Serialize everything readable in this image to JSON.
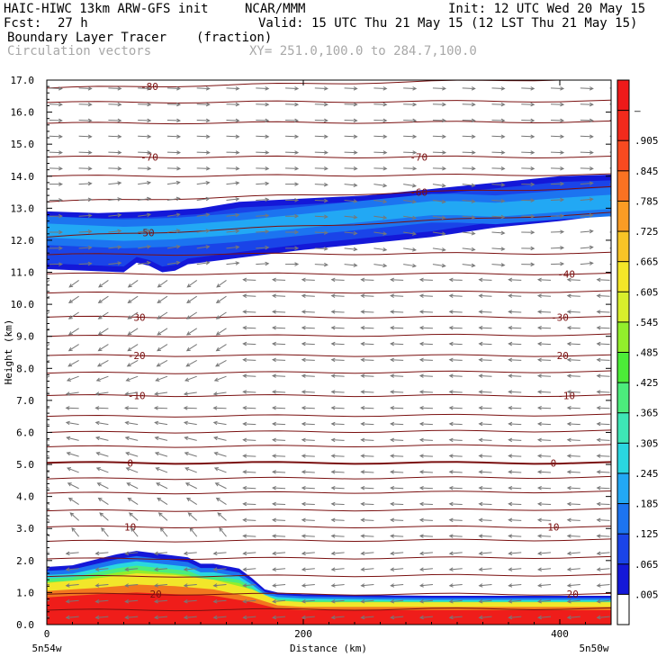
{
  "header": {
    "model": "HAIC-HIWC 13km ARW-GFS init",
    "org": "NCAR/MMM",
    "init": "Init: 12 UTC Wed 20 May 15",
    "fcst_label": "Fcst:",
    "fcst_value": "27 h",
    "valid": "Valid: 15 UTC Thu 21 May 15 (12 LST Thu 21 May 15)",
    "field": "Boundary Layer Tracer",
    "field_units": "(fraction)",
    "overlay": "Circulation vectors",
    "xsec": "XY= 251.0,100.0 to 284.7,100.0"
  },
  "colors": {
    "isotherm": "#7a1010",
    "vector": "#777777",
    "frame": "#000000"
  },
  "chart_data": {
    "type": "heatmap",
    "xlabel": "Distance (km)",
    "ylabel": "Height (km)",
    "xlim": [
      0,
      440
    ],
    "ylim": [
      0,
      17
    ],
    "x_ticks": [
      "0",
      "200",
      "400"
    ],
    "x_tick_values": [
      0,
      200,
      400
    ],
    "x_endpoints": [
      "5n54w",
      "5n50w"
    ],
    "y_ticks": [
      "0.0",
      "1.0",
      "2.0",
      "3.0",
      "4.0",
      "5.0",
      "6.0",
      "7.0",
      "8.0",
      "9.0",
      "10.0",
      "11.0",
      "12.0",
      "13.0",
      "14.0",
      "15.0",
      "16.0",
      "17.0"
    ],
    "colorbar": {
      "labels": [
        ".005",
        ".065",
        ".125",
        ".185",
        ".245",
        ".305",
        ".365",
        ".425",
        ".485",
        ".545",
        ".605",
        ".665",
        ".725",
        ".785",
        ".845",
        ".905",
        "–"
      ],
      "colors": [
        "#ffffff",
        "#1418d8",
        "#1a44e8",
        "#1c74f0",
        "#22a8f4",
        "#2ad6e0",
        "#3ee6b6",
        "#4cec7c",
        "#4cec38",
        "#92ee2c",
        "#d8ee2c",
        "#f4e628",
        "#f8c426",
        "#fa9c24",
        "#fa7222",
        "#f84a20",
        "#f22a1c",
        "#ee1a1a"
      ]
    },
    "layers": [
      {
        "name": "boundary-layer-mid",
        "color": "#f2e62a",
        "x": [
          0,
          40,
          70,
          100,
          130,
          160,
          180,
          200,
          440
        ],
        "y": [
          1.3,
          1.45,
          1.6,
          1.55,
          1.4,
          1.1,
          0.75,
          0.7,
          0.7
        ]
      },
      {
        "name": "boundary-layer-inner",
        "color": "#f2771f",
        "x": [
          0,
          40,
          70,
          100,
          130,
          160,
          180,
          200,
          440
        ],
        "y": [
          1.05,
          1.15,
          1.25,
          1.2,
          1.1,
          0.85,
          0.6,
          0.55,
          0.55
        ]
      },
      {
        "name": "boundary-layer-core",
        "color": "#ef1d1a",
        "x": [
          0,
          40,
          70,
          100,
          130,
          160,
          180,
          200,
          440
        ],
        "y": [
          0.85,
          0.95,
          1.0,
          0.95,
          0.9,
          0.7,
          0.5,
          0.45,
          0.45
        ]
      }
    ],
    "boundary_layer_top": {
      "x": [
        0,
        20,
        40,
        55,
        70,
        90,
        110,
        120,
        130,
        150,
        160,
        170,
        180,
        200,
        250,
        300,
        350,
        400,
        440
      ],
      "y": [
        1.8,
        1.85,
        2.05,
        2.2,
        2.3,
        2.2,
        2.1,
        1.9,
        1.9,
        1.75,
        1.45,
        1.1,
        1.0,
        0.95,
        0.92,
        0.9,
        0.9,
        0.9,
        0.9
      ]
    },
    "cloud_band": {
      "top_x": [
        0,
        40,
        80,
        120,
        150,
        200,
        250,
        300,
        350,
        400,
        440
      ],
      "top_y": [
        12.9,
        12.85,
        12.9,
        13.0,
        13.2,
        13.3,
        13.4,
        13.6,
        13.8,
        14.0,
        14.05
      ],
      "bottom_x": [
        0,
        30,
        60,
        70,
        80,
        90,
        100,
        110,
        120,
        150,
        200,
        250,
        300,
        350,
        400,
        440
      ],
      "bottom_y": [
        11.1,
        11.05,
        11.0,
        11.3,
        11.2,
        11.0,
        11.05,
        11.25,
        11.3,
        11.45,
        11.7,
        11.9,
        12.1,
        12.4,
        12.6,
        12.8
      ],
      "core_x": [
        0,
        60,
        100,
        150,
        200,
        250,
        300,
        320,
        350,
        400,
        440
      ],
      "core_y": [
        12.3,
        12.2,
        12.25,
        12.4,
        12.6,
        12.8,
        13.0,
        13.0,
        12.95,
        13.1,
        13.2
      ]
    },
    "isotherms": [
      {
        "label": "-80",
        "y0": 16.75,
        "y1": 17.05,
        "label_x": [
          80
        ]
      },
      {
        "label": "-70",
        "y0": 14.6,
        "y1": 14.6,
        "label_x": [
          80,
          290
        ]
      },
      {
        "label": "-60",
        "y0": 13.2,
        "y1": 13.65,
        "label_x": [
          290
        ]
      },
      {
        "label": "-50",
        "y0": 12.1,
        "y1": 12.85,
        "label_x": [
          77
        ]
      },
      {
        "label": "-40",
        "y0": 10.95,
        "y1": 10.95,
        "label_x": [
          405
        ]
      },
      {
        "label": "-30",
        "y0": 9.6,
        "y1": 9.6,
        "label_x": [
          70,
          400
        ]
      },
      {
        "label": "-20",
        "y0": 8.4,
        "y1": 8.4,
        "label_x": [
          70,
          400
        ]
      },
      {
        "label": "-10",
        "y0": 7.15,
        "y1": 7.15,
        "label_x": [
          70,
          405
        ]
      },
      {
        "label": "0",
        "y0": 5.05,
        "y1": 5.05,
        "label_x": [
          65,
          395
        ]
      },
      {
        "label": "10",
        "y0": 3.05,
        "y1": 3.05,
        "label_x": [
          65,
          395
        ]
      },
      {
        "label": "20",
        "y0": 0.95,
        "y1": 0.95,
        "label_x": [
          85,
          410
        ]
      }
    ],
    "extra_isotherms_y": [
      16.3,
      15.65,
      14.0,
      11.55,
      10.35,
      9.0,
      7.85,
      6.5,
      6.0,
      5.55,
      4.55,
      4.1,
      3.55,
      2.6,
      2.05,
      1.5,
      0.45
    ]
  }
}
